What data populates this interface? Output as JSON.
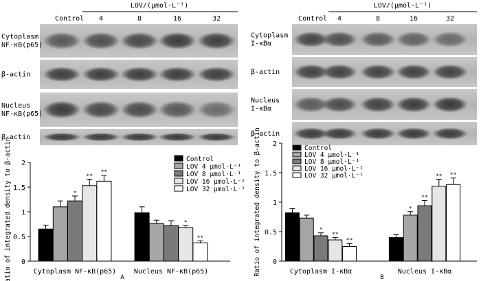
{
  "panels": [
    {
      "letter": "A",
      "header": {
        "control_label": "Control",
        "lov_label": "LOV/(μmol·L⁻¹)",
        "doses": [
          "4",
          "8",
          "16",
          "32"
        ]
      },
      "blots": [
        {
          "label_lines": [
            "Cytoplasm",
            "NF-κB(p65)"
          ],
          "bands": [
            0.62,
            0.68,
            0.72,
            0.8,
            0.78
          ]
        },
        {
          "label_lines": [
            "β-actin"
          ],
          "bands": [
            0.78,
            0.78,
            0.78,
            0.78,
            0.78
          ]
        },
        {
          "label_lines": [
            "Nucleus",
            "NF-κB(p65)"
          ],
          "bands": [
            0.8,
            0.72,
            0.7,
            0.62,
            0.48
          ]
        },
        {
          "label_lines": [
            "β-actin"
          ],
          "bands": [
            0.8,
            0.8,
            0.8,
            0.8,
            0.8
          ]
        }
      ]
    },
    {
      "letter": "B",
      "header": {
        "control_label": "Control",
        "lov_label": "LOV/(μmol·L⁻¹)",
        "doses": [
          "4",
          "8",
          "16",
          "32"
        ]
      },
      "blots": [
        {
          "label_lines": [
            "Cytoplasm",
            "I-κBα"
          ],
          "bands": [
            0.74,
            0.68,
            0.6,
            0.55,
            0.5
          ]
        },
        {
          "label_lines": [
            "β-actin"
          ],
          "bands": [
            0.76,
            0.76,
            0.76,
            0.76,
            0.76
          ]
        },
        {
          "label_lines": [
            "Nucleus",
            "I-κBα"
          ],
          "bands": [
            0.6,
            0.7,
            0.76,
            0.8,
            0.82
          ]
        },
        {
          "label_lines": [
            "β-actin"
          ],
          "bands": [
            0.8,
            0.8,
            0.8,
            0.8,
            0.8
          ]
        }
      ]
    }
  ],
  "chart_data": [
    {
      "type": "bar",
      "panel": "A",
      "title": "",
      "xlabel": "",
      "ylabel": "Ratio of integrated density to β-actin",
      "ylim": [
        0,
        2
      ],
      "yticks": [
        "0",
        "0.5",
        "1",
        "1.5",
        "2"
      ],
      "categories": [
        "Cytoplasm NF-κB(p65)",
        "Nucleus NF-κB(p65)"
      ],
      "legend_position": "top-right",
      "series": [
        {
          "name": "Control",
          "color": "#000000",
          "values": [
            0.65,
            0.98
          ],
          "errors": [
            0.08,
            0.12
          ],
          "marks": [
            "",
            ""
          ]
        },
        {
          "name": "LOV 4 μmol·L⁻¹",
          "color": "#a6a6a6",
          "values": [
            1.1,
            0.76
          ],
          "errors": [
            0.12,
            0.07
          ],
          "marks": [
            "",
            ""
          ]
        },
        {
          "name": "LOV 8 μmol·L⁻¹",
          "color": "#7a7a7a",
          "values": [
            1.22,
            0.72
          ],
          "errors": [
            0.1,
            0.1
          ],
          "marks": [
            "*",
            ""
          ]
        },
        {
          "name": "LOV 16 μmol·L⁻¹",
          "color": "#e6e6e6",
          "values": [
            1.53,
            0.68
          ],
          "errors": [
            0.13,
            0.04
          ],
          "marks": [
            "**",
            "*"
          ]
        },
        {
          "name": "LOV 32 μmol·L⁻¹",
          "color": "#ffffff",
          "values": [
            1.62,
            0.37
          ],
          "errors": [
            0.12,
            0.04
          ],
          "marks": [
            "**",
            "**"
          ]
        }
      ]
    },
    {
      "type": "bar",
      "panel": "B",
      "title": "",
      "xlabel": "",
      "ylabel": "Ratio of integrated density to β-actin",
      "ylim": [
        0,
        2
      ],
      "yticks": [
        "0",
        "0.5",
        "1",
        "1.5",
        "2"
      ],
      "categories": [
        "Cytoplasm I-κBα",
        "Nucleus I-κBα"
      ],
      "legend_position": "top-left",
      "series": [
        {
          "name": "Control",
          "color": "#000000",
          "values": [
            0.82,
            0.4
          ],
          "errors": [
            0.07,
            0.05
          ],
          "marks": [
            "",
            ""
          ]
        },
        {
          "name": "LOV 4 μmol·L⁻¹",
          "color": "#a6a6a6",
          "values": [
            0.73,
            0.78
          ],
          "errors": [
            0.05,
            0.06
          ],
          "marks": [
            "",
            "*"
          ]
        },
        {
          "name": "LOV 8 μmol·L⁻¹",
          "color": "#7a7a7a",
          "values": [
            0.43,
            0.94
          ],
          "errors": [
            0.05,
            0.09
          ],
          "marks": [
            "*",
            "**"
          ]
        },
        {
          "name": "LOV 16 μmol·L⁻¹",
          "color": "#e6e6e6",
          "values": [
            0.36,
            1.27
          ],
          "errors": [
            0.04,
            0.12
          ],
          "marks": [
            "**",
            "**"
          ]
        },
        {
          "name": "LOV 32 μmol·L⁻¹",
          "color": "#ffffff",
          "values": [
            0.25,
            1.3
          ],
          "errors": [
            0.05,
            0.11
          ],
          "marks": [
            "**",
            "**"
          ]
        }
      ]
    }
  ]
}
